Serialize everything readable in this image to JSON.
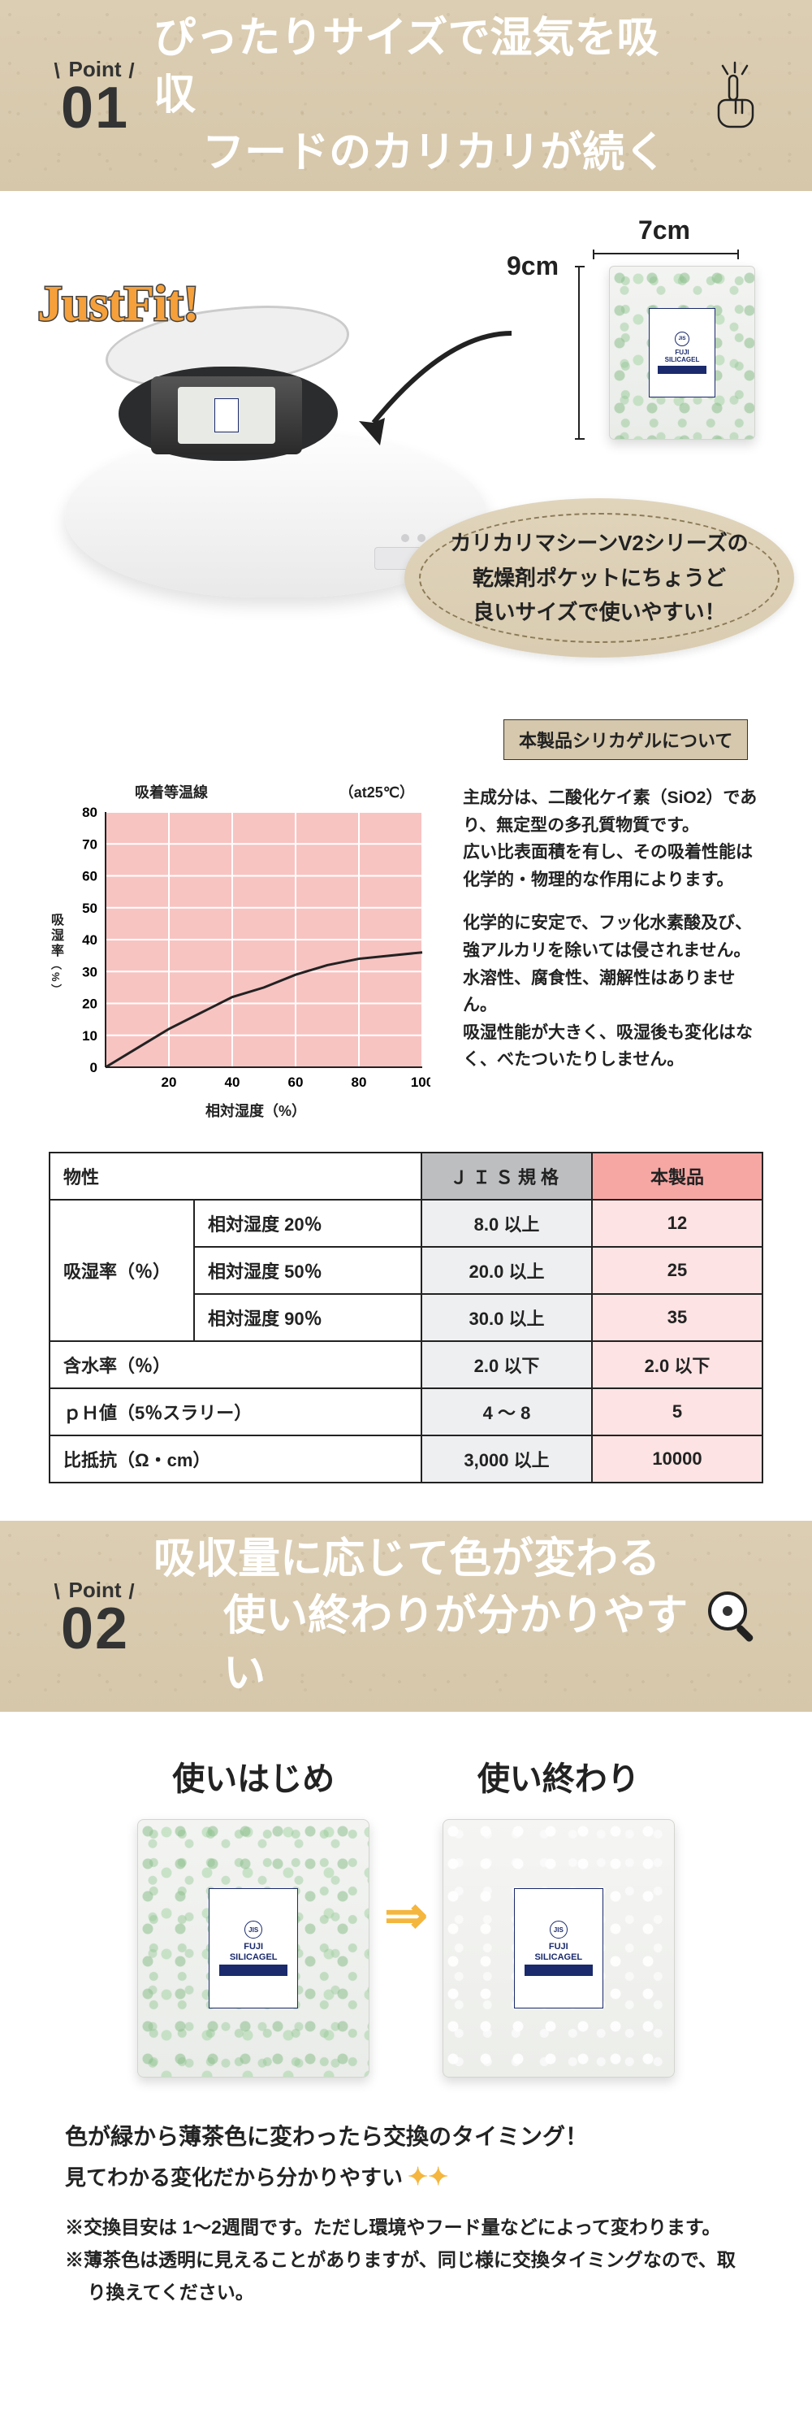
{
  "point1": {
    "label": "Point",
    "num": "01",
    "title_line1": "ぴったりサイズで湿気を吸収",
    "title_line2": "フードのカリカリが続く"
  },
  "sec1": {
    "dim_w": "7cm",
    "dim_h": "9cm",
    "justfit": "JustFit!",
    "packet_brand1": "FUJI",
    "packet_brand2": "SILICAGEL",
    "packet_jis": "JIS",
    "bubble_l1": "カリカリマシーンV2シリーズの",
    "bubble_l2": "乾燥剤ポケットにちょうど",
    "bubble_l3": "良いサイズで使いやすい！"
  },
  "about_badge": "本製品シリカゲルについて",
  "chart": {
    "title": "吸着等温線",
    "at": "（at25℃）",
    "ylabel": "吸湿率",
    "ylabel_sub": "（%）",
    "xlabel": "相対湿度（%）",
    "bg": "#f7c4c2",
    "grid": "#ffffff",
    "line": "#222222",
    "xlim": [
      0,
      100
    ],
    "ylim": [
      0,
      80
    ],
    "xticks": [
      20,
      40,
      60,
      80,
      100
    ],
    "yticks": [
      0,
      10,
      20,
      30,
      40,
      50,
      60,
      70,
      80
    ],
    "series": [
      {
        "x": 0,
        "y": 0
      },
      {
        "x": 10,
        "y": 6
      },
      {
        "x": 20,
        "y": 12
      },
      {
        "x": 30,
        "y": 17
      },
      {
        "x": 40,
        "y": 22
      },
      {
        "x": 50,
        "y": 25
      },
      {
        "x": 60,
        "y": 29
      },
      {
        "x": 70,
        "y": 32
      },
      {
        "x": 80,
        "y": 34
      },
      {
        "x": 90,
        "y": 35
      },
      {
        "x": 100,
        "y": 36
      }
    ]
  },
  "desc": {
    "p1": "主成分は、二酸化ケイ素（SiO2）であり、無定型の多孔質物質です。",
    "p2": "広い比表面積を有し、その吸着性能は化学的・物理的な作用によります。",
    "p3": "化学的に安定で、フッ化水素酸及び、強アルカリを除いては侵されません。",
    "p4": "水溶性、腐食性、潮解性はありません。",
    "p5": "吸湿性能が大きく、吸湿後も変化はなく、べたついたりしません。"
  },
  "table": {
    "head": [
      "物性",
      "ＪＩＳ規格",
      "本製品"
    ],
    "rows": [
      {
        "label": "吸湿率（％）",
        "sub": "相対湿度 20％",
        "jis": "8.0 以上",
        "prod": "12"
      },
      {
        "label": "",
        "sub": "相対湿度 50％",
        "jis": "20.0 以上",
        "prod": "25"
      },
      {
        "label": "",
        "sub": "相対湿度 90％",
        "jis": "30.0 以上",
        "prod": "35"
      },
      {
        "label": "含水率（％）",
        "sub": "",
        "jis": "2.0 以下",
        "prod": "2.0 以下"
      },
      {
        "label": "ｐＨ値（5％スラリー）",
        "sub": "",
        "jis": "4 ～ 8",
        "prod": "5"
      },
      {
        "label": "比抵抗（Ω・cm）",
        "sub": "",
        "jis": "3,000 以上",
        "prod": "10000"
      }
    ]
  },
  "point2": {
    "label": "Point",
    "num": "02",
    "title_line1": "吸収量に応じて色が変わる",
    "title_line2": "使い終わりが分かりやすい"
  },
  "sec3": {
    "h_start": "使いはじめ",
    "h_end": "使い終わり",
    "arrow": "⇒",
    "l1": "色が緑から薄茶色に変わったら交換のタイミング！",
    "l2": "見てわかる変化だから分かりやすい",
    "note1": "※交換目安は 1～2週間です。ただし環境やフード量などによって変わります。",
    "note2": "※薄茶色は透明に見えることがありますが、同じ様に交換タイミングなので、取り換えてください。"
  }
}
